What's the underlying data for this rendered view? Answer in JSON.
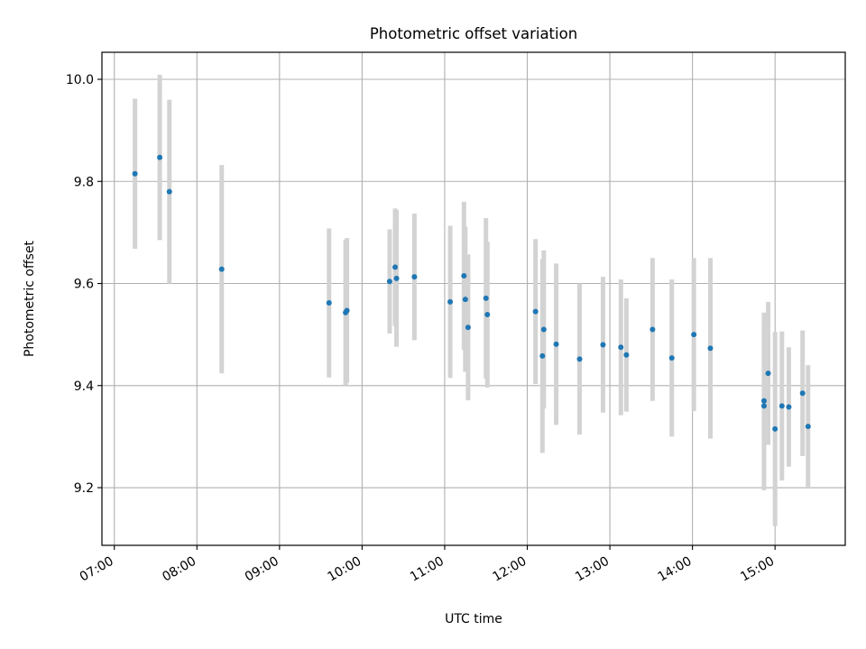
{
  "chart_data": {
    "type": "scatter",
    "title": "Photometric offset variation",
    "xlabel": "UTC time",
    "ylabel": "Photometric offset",
    "xlim": [
      "06:51",
      "15:51"
    ],
    "ylim": [
      9.087,
      10.053
    ],
    "grid": true,
    "x_ticks": [
      "07:00",
      "08:00",
      "09:00",
      "10:00",
      "11:00",
      "12:00",
      "13:00",
      "14:00",
      "15:00"
    ],
    "y_ticks": [
      9.2,
      9.4,
      9.6,
      9.8,
      10.0
    ],
    "y_tick_labels": [
      "9.2",
      "9.4",
      "9.6",
      "9.8",
      "10.0"
    ],
    "colors": {
      "point": "#1f77b4",
      "errorbar": "#d3d3d3",
      "grid": "#b0b0b0"
    },
    "points": [
      {
        "time": "07:15",
        "y": 9.815,
        "err": 0.147
      },
      {
        "time": "07:33",
        "y": 9.847,
        "err": 0.162
      },
      {
        "time": "07:40",
        "y": 9.78,
        "err": 0.18
      },
      {
        "time": "08:18",
        "y": 9.628,
        "err": 0.204
      },
      {
        "time": "09:36",
        "y": 9.562,
        "err": 0.146
      },
      {
        "time": "09:48",
        "y": 9.543,
        "err": 0.143
      },
      {
        "time": "09:49",
        "y": 9.547,
        "err": 0.142
      },
      {
        "time": "10:20",
        "y": 9.604,
        "err": 0.102
      },
      {
        "time": "10:24",
        "y": 9.632,
        "err": 0.115
      },
      {
        "time": "10:25",
        "y": 9.61,
        "err": 0.134
      },
      {
        "time": "10:38",
        "y": 9.613,
        "err": 0.124
      },
      {
        "time": "11:04",
        "y": 9.564,
        "err": 0.149
      },
      {
        "time": "11:14",
        "y": 9.615,
        "err": 0.145
      },
      {
        "time": "11:15",
        "y": 9.569,
        "err": 0.142
      },
      {
        "time": "11:17",
        "y": 9.514,
        "err": 0.143
      },
      {
        "time": "11:30",
        "y": 9.571,
        "err": 0.157
      },
      {
        "time": "11:31",
        "y": 9.539,
        "err": 0.143
      },
      {
        "time": "12:06",
        "y": 9.545,
        "err": 0.142
      },
      {
        "time": "12:11",
        "y": 9.458,
        "err": 0.19
      },
      {
        "time": "12:12",
        "y": 9.51,
        "err": 0.155
      },
      {
        "time": "12:21",
        "y": 9.481,
        "err": 0.158
      },
      {
        "time": "12:38",
        "y": 9.452,
        "err": 0.148
      },
      {
        "time": "12:55",
        "y": 9.48,
        "err": 0.133
      },
      {
        "time": "13:08",
        "y": 9.475,
        "err": 0.133
      },
      {
        "time": "13:12",
        "y": 9.46,
        "err": 0.111
      },
      {
        "time": "13:31",
        "y": 9.51,
        "err": 0.14
      },
      {
        "time": "13:45",
        "y": 9.454,
        "err": 0.154
      },
      {
        "time": "14:01",
        "y": 9.5,
        "err": 0.15
      },
      {
        "time": "14:13",
        "y": 9.473,
        "err": 0.177
      },
      {
        "time": "14:52",
        "y": 9.37,
        "err": 0.173
      },
      {
        "time": "14:52",
        "y": 9.36,
        "err": 0.165
      },
      {
        "time": "14:55",
        "y": 9.424,
        "err": 0.14
      },
      {
        "time": "15:00",
        "y": 9.315,
        "err": 0.19
      },
      {
        "time": "15:05",
        "y": 9.36,
        "err": 0.146
      },
      {
        "time": "15:10",
        "y": 9.358,
        "err": 0.117
      },
      {
        "time": "15:20",
        "y": 9.385,
        "err": 0.123
      },
      {
        "time": "15:24",
        "y": 9.32,
        "err": 0.12
      }
    ]
  }
}
